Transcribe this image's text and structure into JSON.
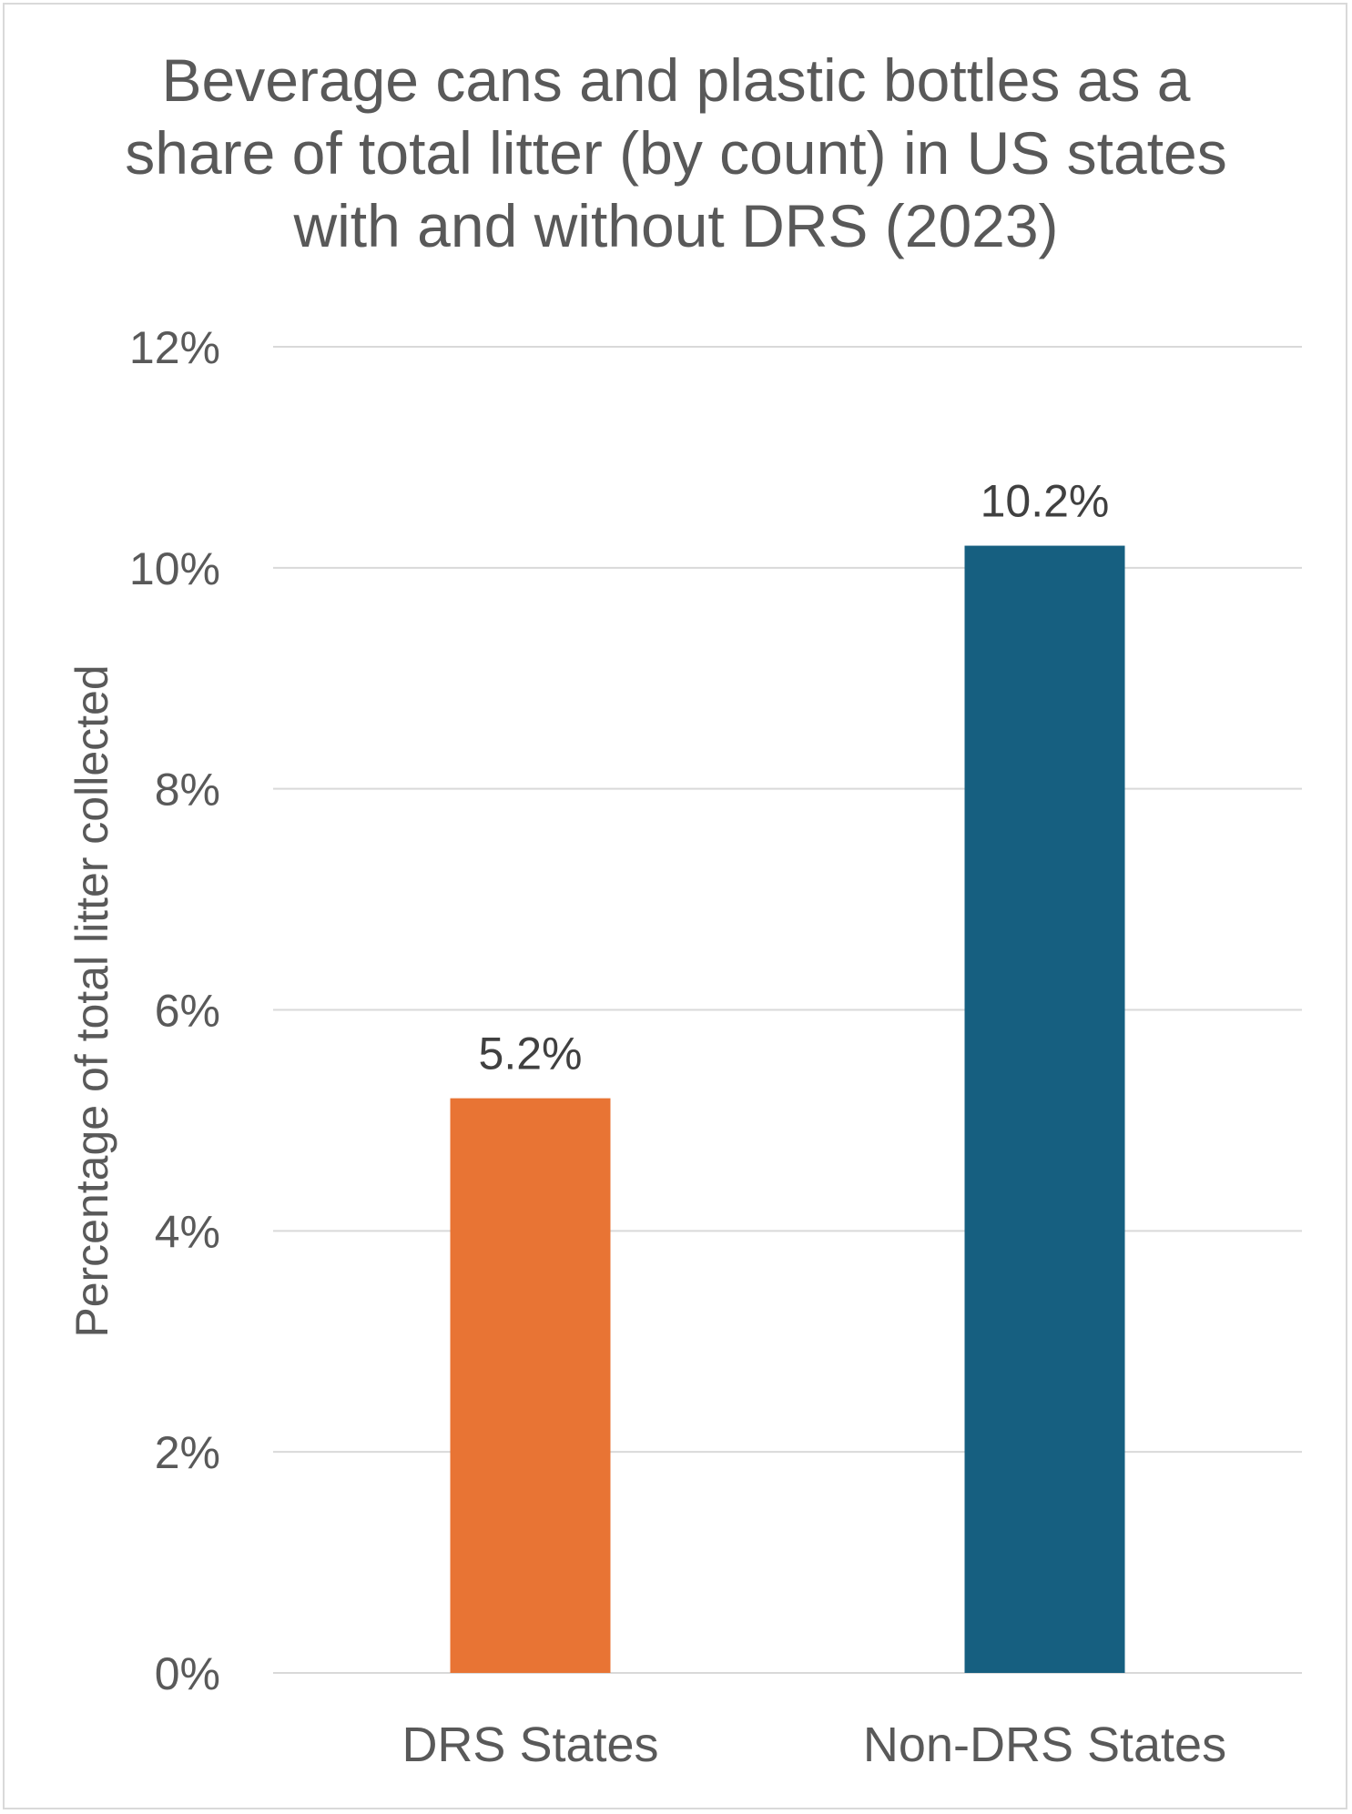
{
  "chart_data": {
    "type": "bar",
    "title": "Beverage cans and plastic bottles as a\nshare of total litter (by count) in US states\nwith and without DRS (2023)",
    "xlabel": "",
    "ylabel": "Percentage of total litter collected",
    "categories": [
      "DRS States",
      "Non-DRS States"
    ],
    "values": [
      5.2,
      10.2
    ],
    "value_labels": [
      "5.2%",
      "10.2%"
    ],
    "bar_colors": [
      "#E87434",
      "#165F80"
    ],
    "ylim": [
      0,
      12
    ],
    "yticks": [
      0,
      2,
      4,
      6,
      8,
      10,
      12
    ],
    "ytick_labels": [
      "0%",
      "2%",
      "4%",
      "6%",
      "8%",
      "10%",
      "12%"
    ],
    "grid": true,
    "legend": "none"
  },
  "colors": {
    "text": "#595959",
    "label_text": "#404040",
    "gridline": "#d9d9d9"
  }
}
